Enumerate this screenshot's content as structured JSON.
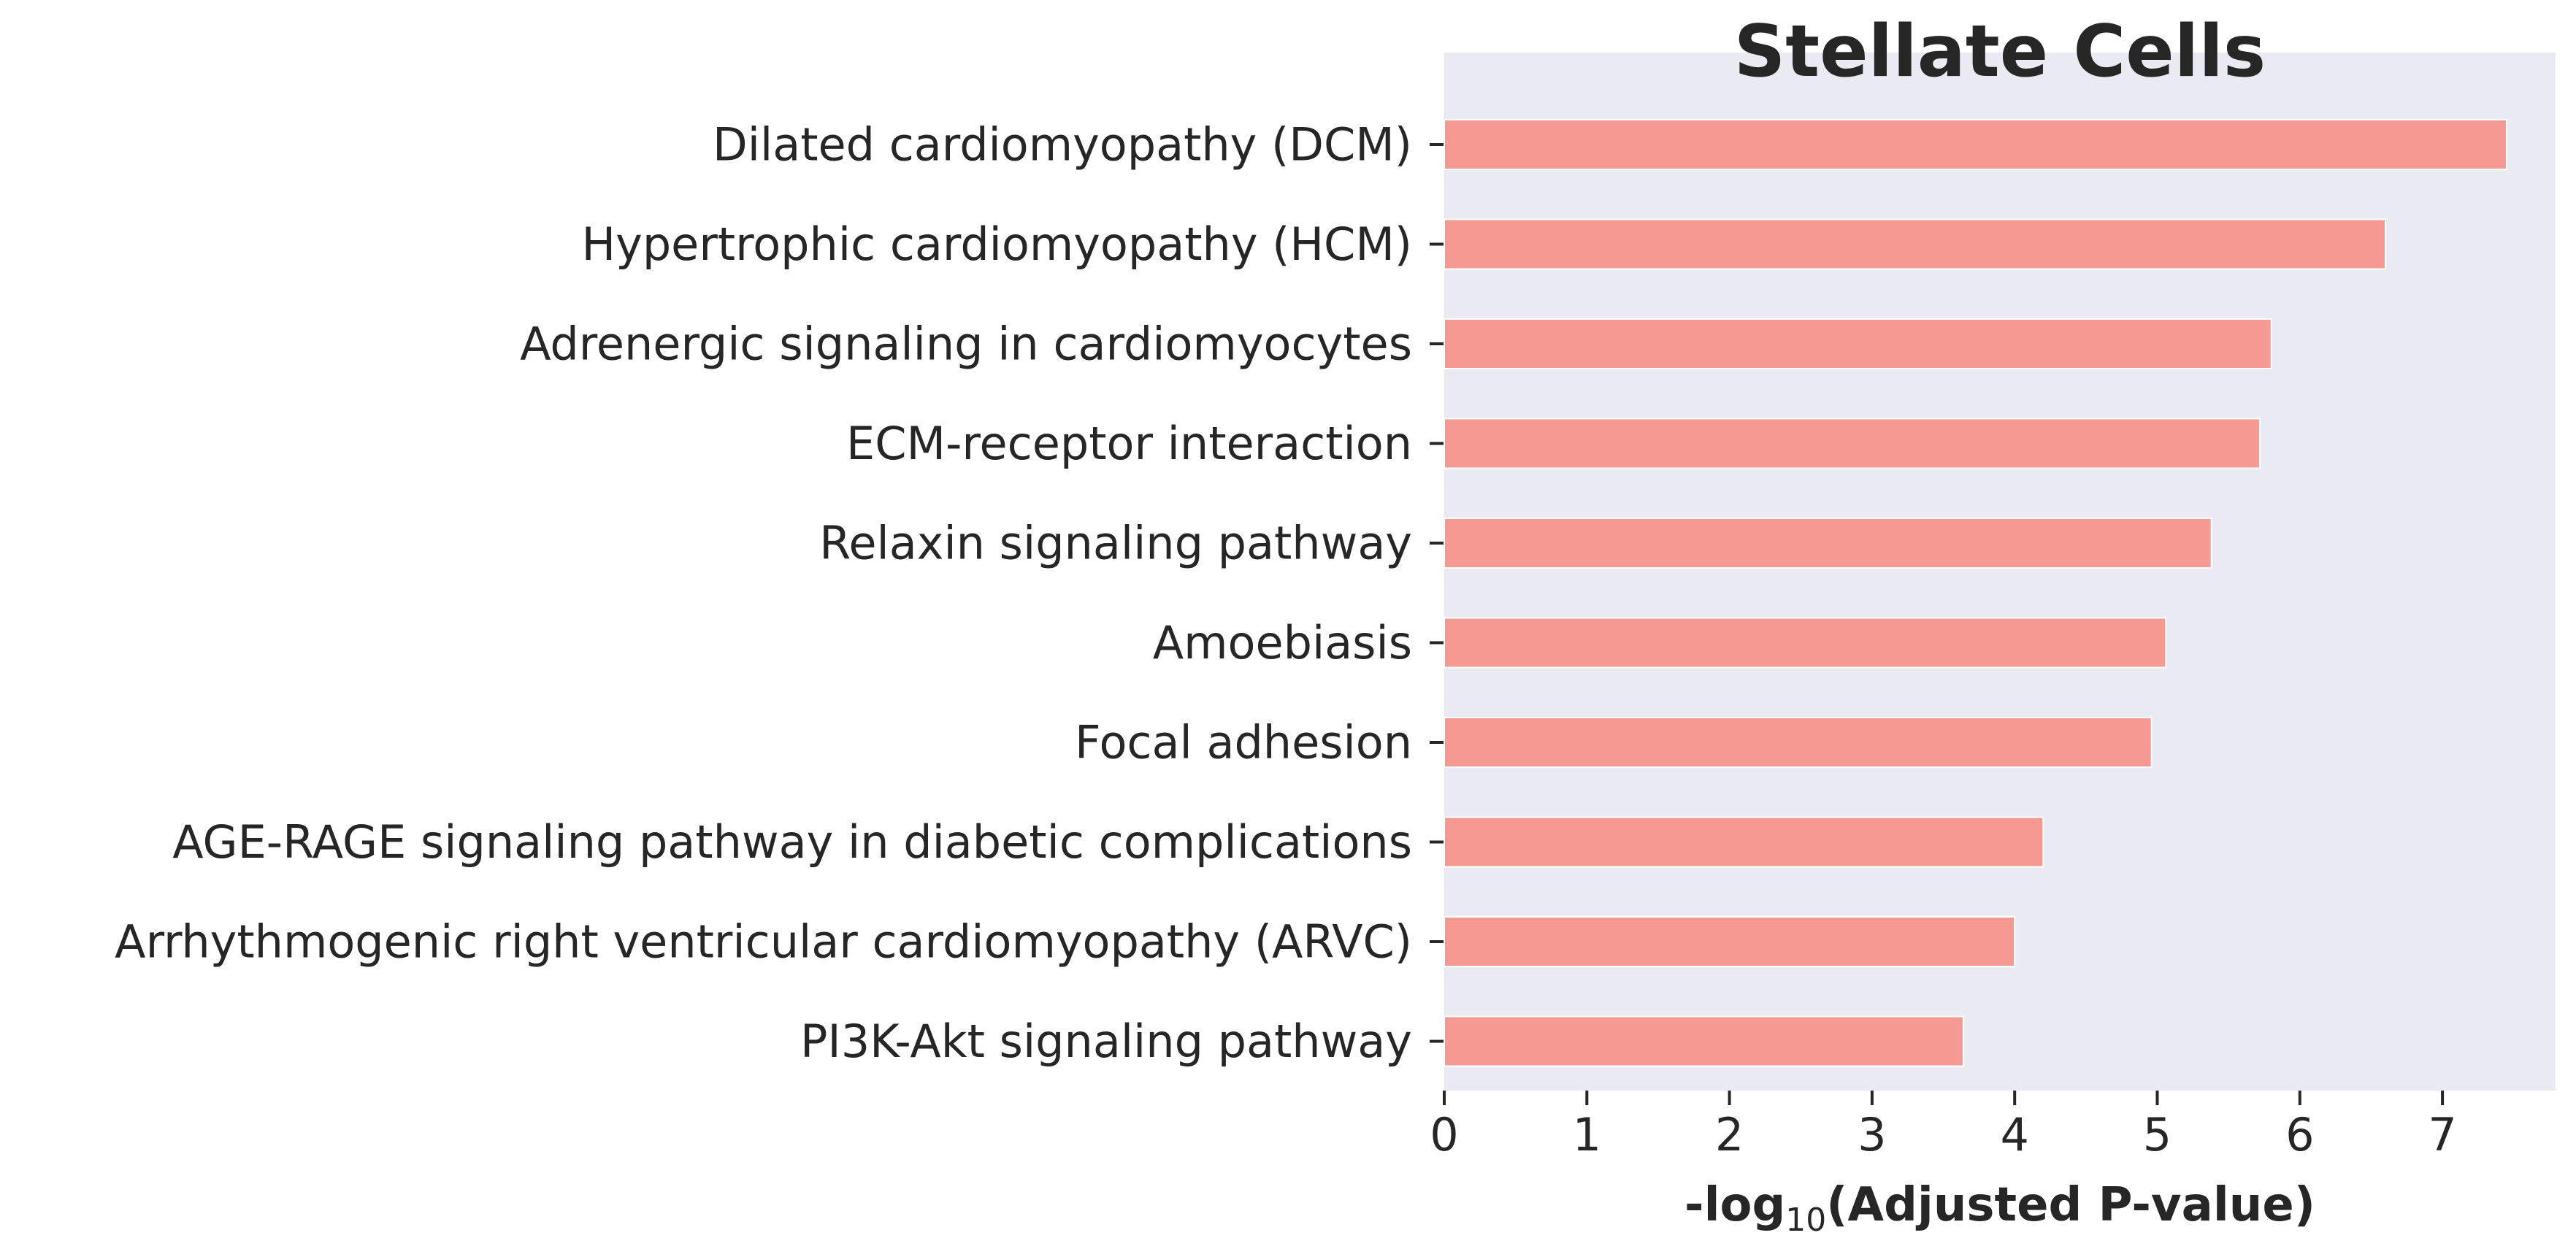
{
  "chart_data": {
    "type": "bar",
    "orientation": "horizontal",
    "title": "Stellate Cells",
    "xlabel": {
      "prefix": "-log",
      "subscript": "10",
      "suffix": "(Adjusted P-value)"
    },
    "ylabel": "",
    "categories": [
      "Dilated cardiomyopathy (DCM)",
      "Hypertrophic cardiomyopathy (HCM)",
      "Adrenergic signaling in cardiomyocytes",
      "ECM-receptor interaction",
      "Relaxin signaling pathway",
      "Amoebiasis",
      "Focal adhesion",
      "AGE-RAGE signaling pathway in diabetic complications",
      "Arrhythmogenic right ventricular cardiomyopathy (ARVC)",
      "PI3K-Akt signaling pathway"
    ],
    "values": [
      7.45,
      6.6,
      5.8,
      5.72,
      5.38,
      5.06,
      4.96,
      4.2,
      4.0,
      3.64
    ],
    "xlim": [
      0,
      7.8
    ],
    "xticks": [
      "0",
      "1",
      "2",
      "3",
      "4",
      "5",
      "6",
      "7"
    ],
    "grid": false,
    "bar_color": "#F49A93",
    "background_color": "#EAEAF2",
    "text_color": "#262626"
  }
}
